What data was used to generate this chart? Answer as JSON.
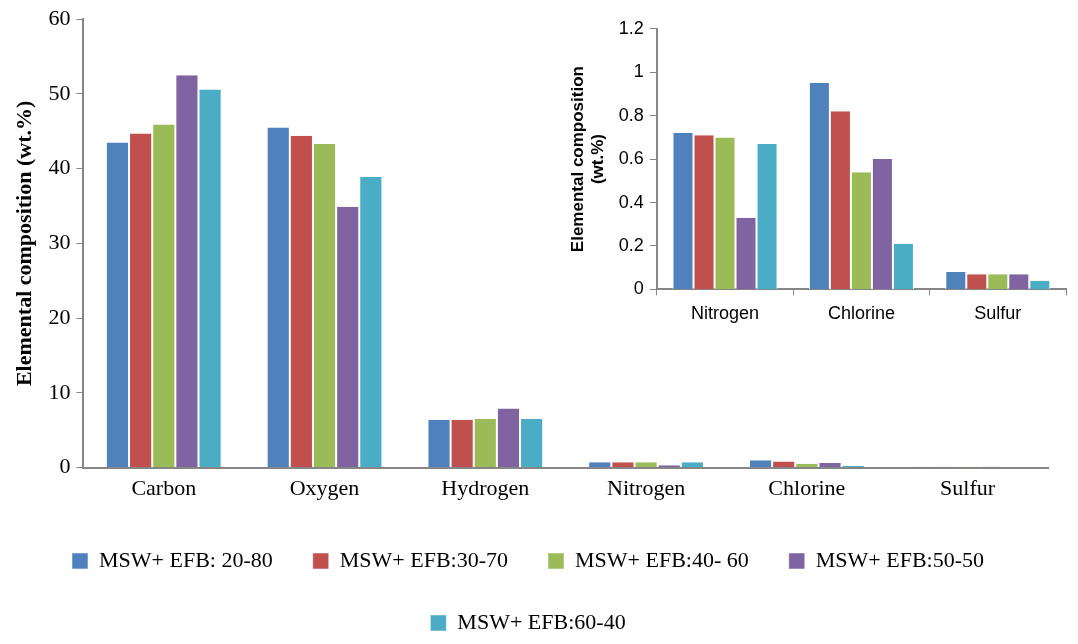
{
  "chart_data": [
    {
      "type": "bar",
      "ylabel": "Elemental composition (wt.%)",
      "categories": [
        "Carbon",
        "Oxygen",
        "Hydrogen",
        "Nitrogen",
        "Chlorine",
        "Sulfur"
      ],
      "ylim": [
        0,
        60
      ],
      "yticks": [
        0,
        10,
        20,
        30,
        40,
        50,
        60
      ],
      "legend": "bottom",
      "series": [
        {
          "name": "MSW+ EFB: 20-80",
          "color": "#4f81bd",
          "values": [
            43.5,
            45.5,
            6.4,
            0.7,
            1.0,
            0.1
          ]
        },
        {
          "name": "MSW+ EFB:30-70",
          "color": "#c0504d",
          "values": [
            44.7,
            44.4,
            6.4,
            0.7,
            0.8,
            0.1
          ]
        },
        {
          "name": "MSW+ EFB:40- 60",
          "color": "#9bbb59",
          "values": [
            45.9,
            43.3,
            6.5,
            0.7,
            0.5,
            0.1
          ]
        },
        {
          "name": "MSW+ EFB:50-50",
          "color": "#8064a2",
          "values": [
            52.5,
            34.9,
            7.9,
            0.3,
            0.6,
            0.1
          ]
        },
        {
          "name": "MSW+ EFB:60-40",
          "color": "#4bacc6",
          "values": [
            50.6,
            38.9,
            6.5,
            0.7,
            0.2,
            0.0
          ]
        }
      ]
    },
    {
      "type": "bar",
      "ylabel": "Elemental composition (wt.%)",
      "categories": [
        "Nitrogen",
        "Chlorine",
        "Sulfur"
      ],
      "ylim": [
        0,
        1.2
      ],
      "yticks": [
        0,
        0.2,
        0.4,
        0.6,
        0.8,
        1,
        1.2
      ],
      "series": [
        {
          "color": "#4f81bd",
          "values": [
            0.72,
            0.95,
            0.08
          ]
        },
        {
          "color": "#c0504d",
          "values": [
            0.71,
            0.82,
            0.07
          ]
        },
        {
          "color": "#9bbb59",
          "values": [
            0.7,
            0.54,
            0.07
          ]
        },
        {
          "color": "#8064a2",
          "values": [
            0.33,
            0.6,
            0.07
          ]
        },
        {
          "color": "#4bacc6",
          "values": [
            0.67,
            0.21,
            0.04
          ]
        }
      ]
    }
  ]
}
